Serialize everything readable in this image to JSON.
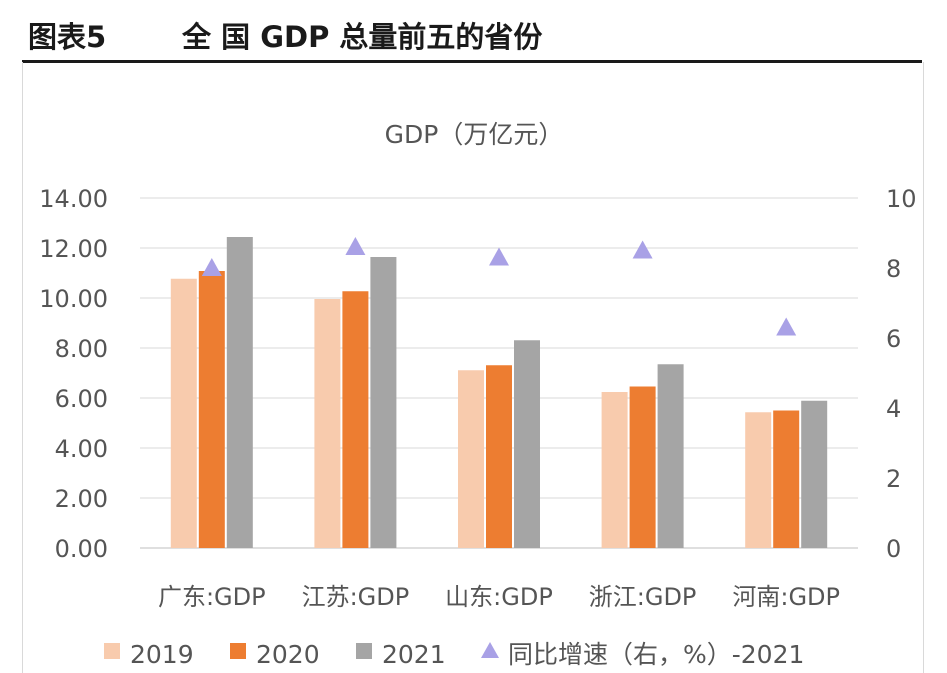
{
  "header": {
    "figure_label": "图表5",
    "title": "全 国 GDP 总量前五的省份"
  },
  "chart_data": {
    "type": "bar",
    "title": "GDP（万亿元）",
    "categories": [
      "广东:GDP",
      "江苏:GDP",
      "山东:GDP",
      "浙江:GDP",
      "河南:GDP"
    ],
    "series": [
      {
        "name": "2019",
        "values": [
          10.77,
          9.96,
          7.11,
          6.24,
          5.43
        ],
        "color": "#f8cbad"
      },
      {
        "name": "2020",
        "values": [
          11.08,
          10.27,
          7.31,
          6.46,
          5.5
        ],
        "color": "#ed7d31"
      },
      {
        "name": "2021",
        "values": [
          12.44,
          11.64,
          8.31,
          7.35,
          5.89
        ],
        "color": "#a5a5a5"
      }
    ],
    "line_series": {
      "name": "同比增速（右，%）-2021",
      "values": [
        8.0,
        8.6,
        8.3,
        8.5,
        6.3
      ],
      "color": "#a9a1e6",
      "marker": "triangle",
      "axis": "right"
    },
    "left_axis": {
      "ylim": [
        0,
        14
      ],
      "ticks": [
        "0.00",
        "2.00",
        "4.00",
        "6.00",
        "8.00",
        "10.00",
        "12.00",
        "14.00"
      ]
    },
    "right_axis": {
      "ylim": [
        0,
        10
      ],
      "ticks": [
        "0",
        "2",
        "4",
        "6",
        "8",
        "10"
      ]
    },
    "grid": true,
    "legend_position": "bottom"
  }
}
